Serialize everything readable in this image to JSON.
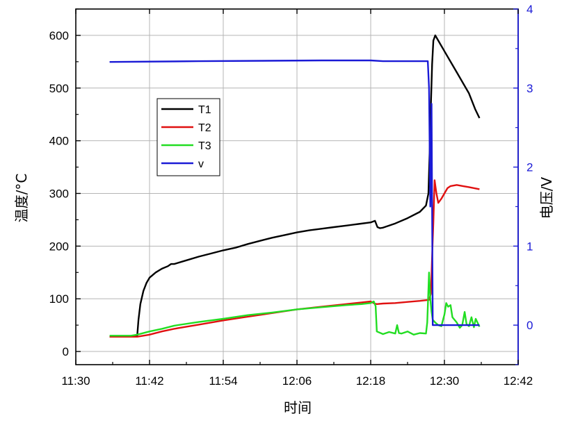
{
  "chart_data": {
    "type": "line",
    "title": "",
    "xlabel": "时间",
    "ylabel": "温度/°C",
    "y2label": "电压/V",
    "x_tick_labels": [
      "11:30",
      "11:42",
      "11:54",
      "12:06",
      "12:18",
      "12:30",
      "12:42"
    ],
    "x_ticks": [
      0,
      12,
      24,
      36,
      48,
      60,
      72
    ],
    "xlim": [
      0,
      72
    ],
    "ylim": [
      -25,
      650
    ],
    "y_ticks": [
      0,
      100,
      200,
      300,
      400,
      500,
      600
    ],
    "y_tick_labels": [
      "0",
      "100",
      "200",
      "300",
      "400",
      "500",
      "600"
    ],
    "y2lim": [
      -0.5,
      4
    ],
    "y2_ticks": [
      0,
      1,
      2,
      3,
      4
    ],
    "y2_tick_labels": [
      "0",
      "1",
      "2",
      "3",
      "4"
    ],
    "grid": true,
    "legend_position": "upper-left",
    "colors": {
      "T1": "#000000",
      "T2": "#e01010",
      "T3": "#22dd22",
      "v": "#1a1ad6",
      "right_axis": "#1a1ad6"
    },
    "series": [
      {
        "name": "T1",
        "axis": "left",
        "x": [
          5.5,
          9,
          10,
          10.2,
          10.5,
          11,
          11.5,
          12,
          13,
          14,
          15,
          15.5,
          16,
          18,
          20,
          22,
          24,
          26,
          28,
          30,
          32,
          34,
          36,
          38,
          40,
          42,
          44,
          46,
          48,
          48.7,
          49.1,
          49.5,
          50,
          52,
          54,
          56,
          57,
          57.4,
          57.6,
          57.8,
          58,
          58.2,
          58.5,
          59,
          60,
          62,
          64,
          65,
          65.7
        ],
        "y": [
          28,
          28,
          30,
          60,
          90,
          115,
          130,
          140,
          150,
          157,
          162,
          166,
          166,
          173,
          180,
          186,
          192,
          197,
          204,
          210,
          216,
          221,
          226,
          230,
          233,
          236,
          239,
          242,
          245,
          248,
          236,
          234,
          235,
          243,
          253,
          265,
          277,
          300,
          380,
          470,
          545,
          590,
          600,
          590,
          570,
          530,
          490,
          460,
          443
        ]
      },
      {
        "name": "T2",
        "axis": "left",
        "x": [
          5.5,
          10,
          12,
          14,
          16,
          20,
          24,
          28,
          32,
          36,
          40,
          44,
          46.5,
          48,
          48.6,
          49,
          50,
          52,
          54,
          56,
          57.5,
          57.8,
          58,
          58.2,
          58.4,
          58.7,
          59,
          59.5,
          60,
          60.5,
          61,
          62,
          63,
          64,
          65.7
        ],
        "y": [
          28,
          28,
          32,
          38,
          43,
          51,
          59,
          66,
          73,
          80,
          85,
          90,
          93,
          95,
          91,
          90,
          91,
          92,
          94,
          96,
          98,
          110,
          180,
          245,
          325,
          300,
          282,
          290,
          300,
          310,
          314,
          316,
          314,
          312,
          308
        ]
      },
      {
        "name": "T3",
        "axis": "left",
        "x": [
          5.5,
          9,
          10,
          12,
          14,
          16,
          20,
          24,
          28,
          32,
          36,
          40,
          44,
          46.5,
          48,
          48.5,
          48.8,
          49,
          50,
          51,
          52,
          52.3,
          52.6,
          53,
          54,
          55,
          56,
          57,
          57.2,
          57.5,
          57.7,
          57.9,
          58.1,
          58.5,
          59,
          59.5,
          60,
          60.3,
          60.6,
          61,
          61.3,
          62,
          62.5,
          62.9,
          63.3,
          63.6,
          64,
          64.4,
          64.8,
          65.1,
          65.7
        ],
        "y": [
          30,
          30,
          32,
          38,
          43,
          49,
          56,
          62,
          69,
          74,
          80,
          84,
          88,
          90,
          92,
          95,
          86,
          38,
          33,
          37,
          34,
          50,
          35,
          34,
          38,
          32,
          35,
          34,
          55,
          150,
          100,
          75,
          60,
          55,
          50,
          48,
          70,
          92,
          85,
          88,
          65,
          55,
          45,
          50,
          75,
          52,
          48,
          65,
          46,
          62,
          47
        ]
      },
      {
        "name": "v",
        "axis": "right",
        "x": [
          5.5,
          20,
          40,
          48,
          50,
          57.3,
          57.5,
          57.7,
          57.9,
          58.1,
          58.3,
          60,
          62,
          65.7
        ],
        "y": [
          3.33,
          3.34,
          3.35,
          3.35,
          3.34,
          3.34,
          3.0,
          1.5,
          2.8,
          0.0,
          0.0,
          0.0,
          0.0,
          0.0
        ]
      }
    ]
  }
}
